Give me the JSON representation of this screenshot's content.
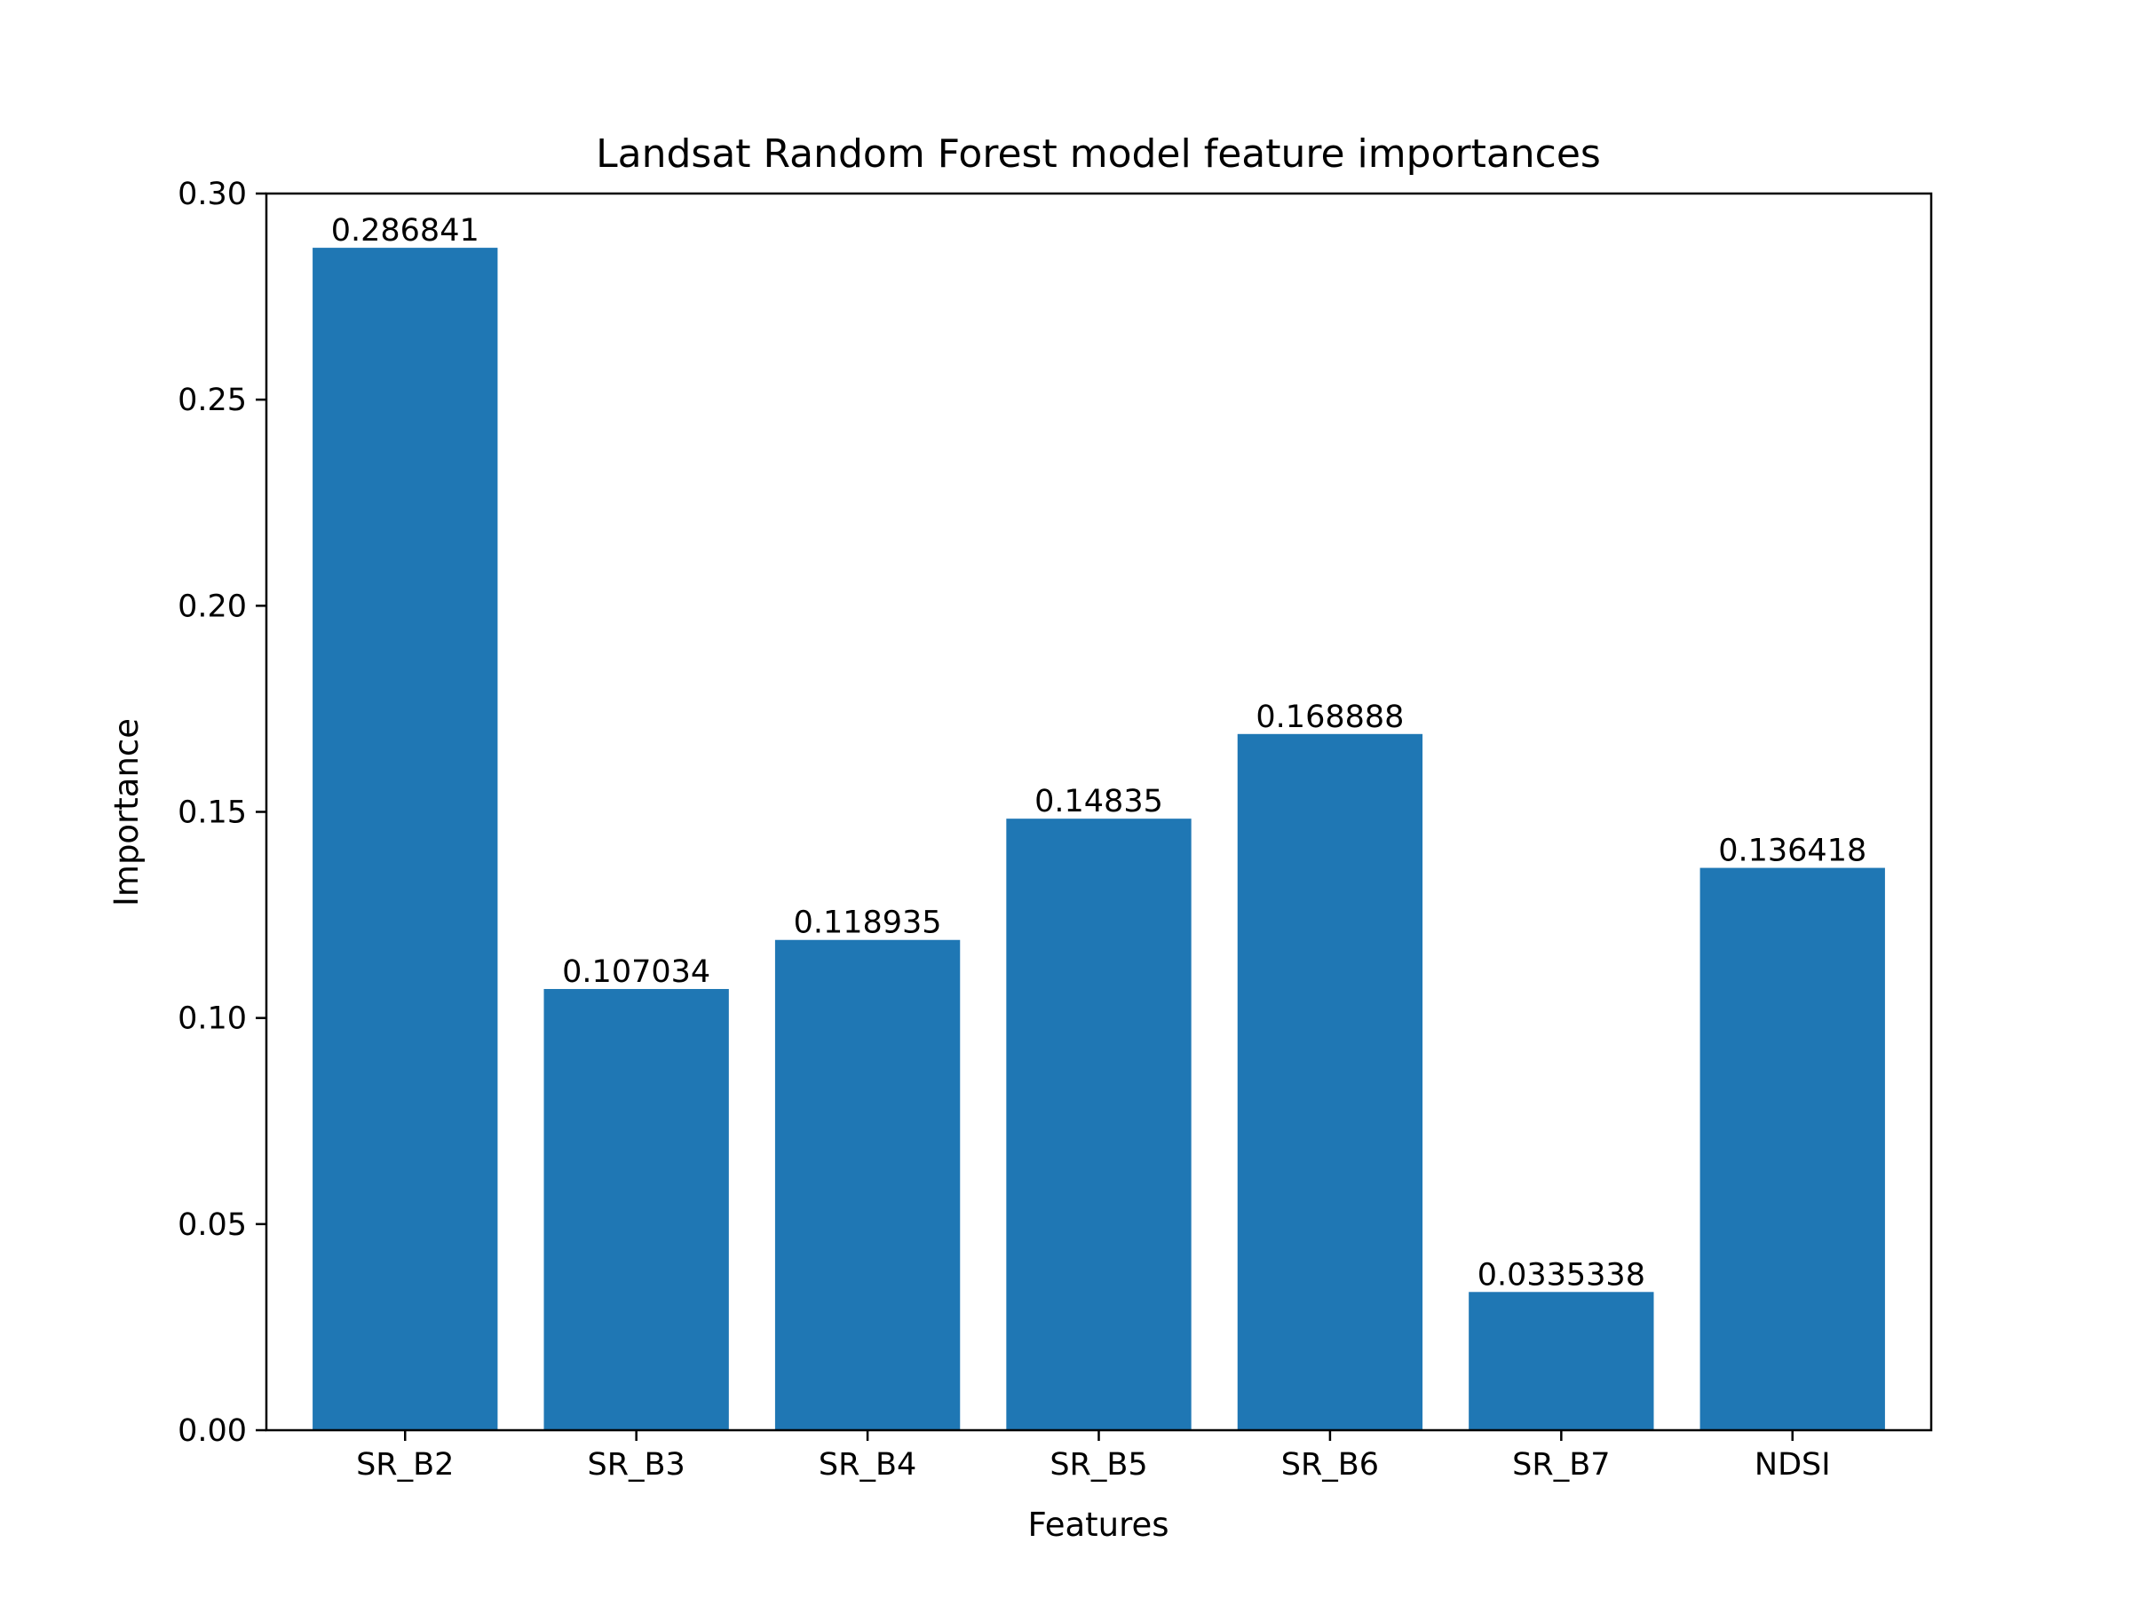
{
  "chart_data": {
    "type": "bar",
    "title": "Landsat Random Forest model feature importances",
    "xlabel": "Features",
    "ylabel": "Importance",
    "categories": [
      "SR_B2",
      "SR_B3",
      "SR_B4",
      "SR_B5",
      "SR_B6",
      "SR_B7",
      "NDSI"
    ],
    "values": [
      0.286841,
      0.107034,
      0.118935,
      0.14835,
      0.168888,
      0.0335338,
      0.136418
    ],
    "value_labels": [
      "0.286841",
      "0.107034",
      "0.118935",
      "0.14835",
      "0.168888",
      "0.0335338",
      "0.136418"
    ],
    "ylim": [
      0,
      0.3
    ],
    "yticks": [
      0.0,
      0.05,
      0.1,
      0.15,
      0.2,
      0.25,
      0.3
    ],
    "ytick_labels": [
      "0.00",
      "0.05",
      "0.10",
      "0.15",
      "0.20",
      "0.25",
      "0.30"
    ],
    "bar_color": "#1f77b4",
    "grid": false,
    "legend": "none"
  }
}
